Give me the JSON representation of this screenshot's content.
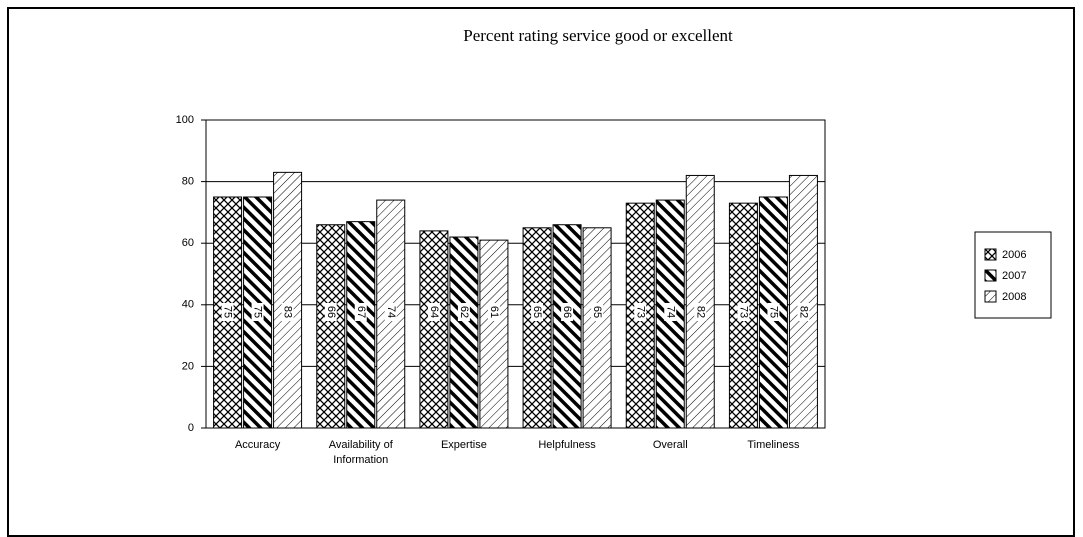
{
  "chart_data": {
    "type": "bar",
    "title": "Percent rating service good or excellent",
    "categories": [
      "Accuracy",
      "Availability of Information",
      "Expertise",
      "Helpfulness",
      "Overall",
      "Timeliness"
    ],
    "series": [
      {
        "name": "2006",
        "values": [
          75,
          66,
          64,
          65,
          73,
          73
        ]
      },
      {
        "name": "2007",
        "values": [
          75,
          67,
          62,
          66,
          74,
          75
        ]
      },
      {
        "name": "2008",
        "values": [
          83,
          74,
          61,
          65,
          82,
          82
        ]
      }
    ],
    "ylim": [
      0,
      100
    ],
    "yticks": [
      0,
      20,
      40,
      60,
      80,
      100
    ],
    "grid": true,
    "legend": "right"
  }
}
